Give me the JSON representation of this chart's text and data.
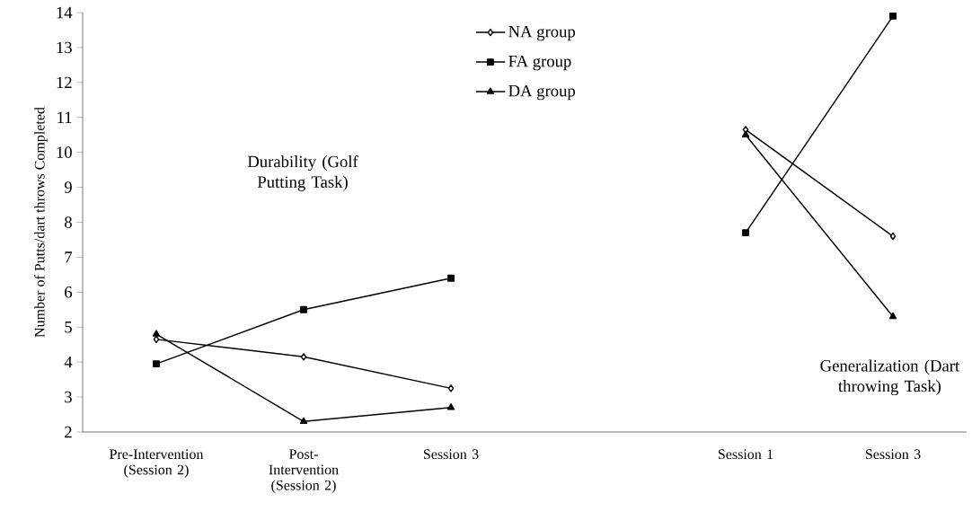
{
  "chart_data": {
    "type": "line",
    "ylabel": "Number of Putts/dart throws Completed",
    "categories": [
      "Pre-Intervention (Session 2)",
      "Post-Intervention (Session 2)",
      "Session 3",
      null,
      "Session 1",
      "Session 3"
    ],
    "series": [
      {
        "name": "NA group",
        "color": "#000000",
        "marker": "diamond",
        "values": [
          4.65,
          4.15,
          3.25,
          null,
          10.65,
          7.6
        ]
      },
      {
        "name": "FA group",
        "color": "#000000",
        "marker": "square",
        "values": [
          3.95,
          5.5,
          6.4,
          null,
          7.7,
          13.9
        ]
      },
      {
        "name": "DA group",
        "color": "#000000",
        "marker": "triangle",
        "values": [
          4.8,
          2.3,
          2.7,
          null,
          10.5,
          5.3
        ]
      }
    ],
    "ylim": [
      2,
      14
    ],
    "yticks": [
      2,
      3,
      4,
      5,
      6,
      7,
      8,
      9,
      10,
      11,
      12,
      13,
      14
    ],
    "legend": "top",
    "grid": false,
    "line_style": "solid",
    "annotations": [
      "Durability (Golf Putting Task)",
      "Generalization (Dart throwing Task)"
    ]
  }
}
